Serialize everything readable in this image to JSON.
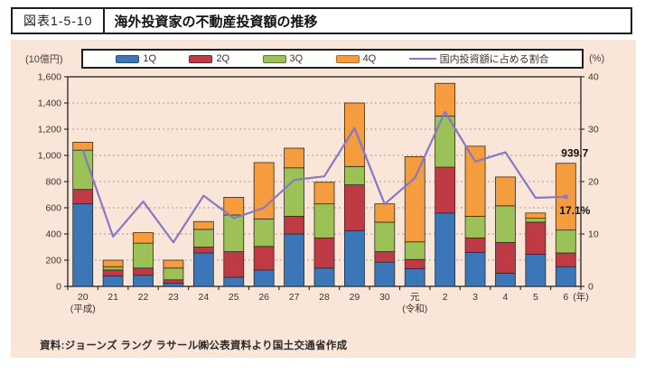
{
  "header": {
    "figure_label": "図表1-5-10",
    "title": "海外投資家の不動産投資額の推移"
  },
  "footer": {
    "source": "資料:ジョーンズ ラング ラサール㈱公表資料より国土交通省作成"
  },
  "colors": {
    "panel_bg": "#fae6d8",
    "grid": "#a49c92",
    "axis": "#33302c",
    "q1": "#3b76b8",
    "q1_border": "#235289",
    "q2": "#be3b46",
    "q2_border": "#7e2029",
    "q3": "#9cc157",
    "q3_border": "#5e7d2b",
    "q4": "#f49c3e",
    "q4_border": "#b96a14",
    "line": "#8579c5",
    "annotation_text": "#111111"
  },
  "chart_data": {
    "type": "combo",
    "bar_mode": "stacked",
    "title": "海外投資家の不動産投資額の推移",
    "categories": [
      "20",
      "21",
      "22",
      "23",
      "24",
      "25",
      "26",
      "27",
      "28",
      "29",
      "30",
      "元",
      "2",
      "3",
      "4",
      "5",
      "6"
    ],
    "category_sublabels": {
      "0": "(平成)",
      "11": "(令和)"
    },
    "x_axis_suffix": "(年)",
    "y_left": {
      "label": "(10億円)",
      "min": 0,
      "max": 1600,
      "step": 200
    },
    "y_right": {
      "label": "(%)",
      "min": 0,
      "max": 40,
      "step": 10
    },
    "grid": "dashed horizontal at each left-axis step",
    "legend_position": "top",
    "series": [
      {
        "name": "1Q",
        "type": "bar",
        "color_key": "q1",
        "values": [
          630,
          80,
          85,
          25,
          255,
          70,
          125,
          400,
          140,
          425,
          185,
          135,
          560,
          260,
          100,
          245,
          150
        ]
      },
      {
        "name": "2Q",
        "type": "bar",
        "color_key": "q2",
        "values": [
          110,
          45,
          55,
          25,
          45,
          195,
          180,
          135,
          230,
          350,
          80,
          70,
          350,
          110,
          235,
          245,
          105
        ]
      },
      {
        "name": "3Q",
        "type": "bar",
        "color_key": "q3",
        "values": [
          300,
          25,
          190,
          90,
          135,
          280,
          210,
          370,
          260,
          140,
          225,
          135,
          390,
          165,
          280,
          30,
          175
        ]
      },
      {
        "name": "4Q",
        "type": "bar",
        "color_key": "q4",
        "values": [
          60,
          50,
          80,
          60,
          60,
          135,
          430,
          150,
          165,
          485,
          140,
          650,
          250,
          535,
          220,
          40,
          509.7
        ]
      },
      {
        "name": "国内投資額に占める割合",
        "type": "line",
        "axis": "right",
        "color_key": "line",
        "values": [
          26.0,
          9.5,
          16.2,
          8.4,
          17.3,
          13.0,
          15.0,
          20.3,
          21.0,
          30.2,
          15.7,
          20.7,
          33.3,
          23.8,
          25.6,
          16.9,
          17.1
        ]
      }
    ],
    "bar_totals": [
      1100,
      200,
      410,
      200,
      495,
      680,
      945,
      1055,
      795,
      1400,
      630,
      990,
      1550,
      1070,
      835,
      560,
      939.7
    ],
    "annotations": [
      {
        "text": "939.7",
        "category_index": 16,
        "attach": "bar-top",
        "dy": -7,
        "bold": true
      },
      {
        "text": "17.1%",
        "category_index": 16,
        "attach": "line",
        "dy": 19,
        "bold": true
      }
    ]
  }
}
